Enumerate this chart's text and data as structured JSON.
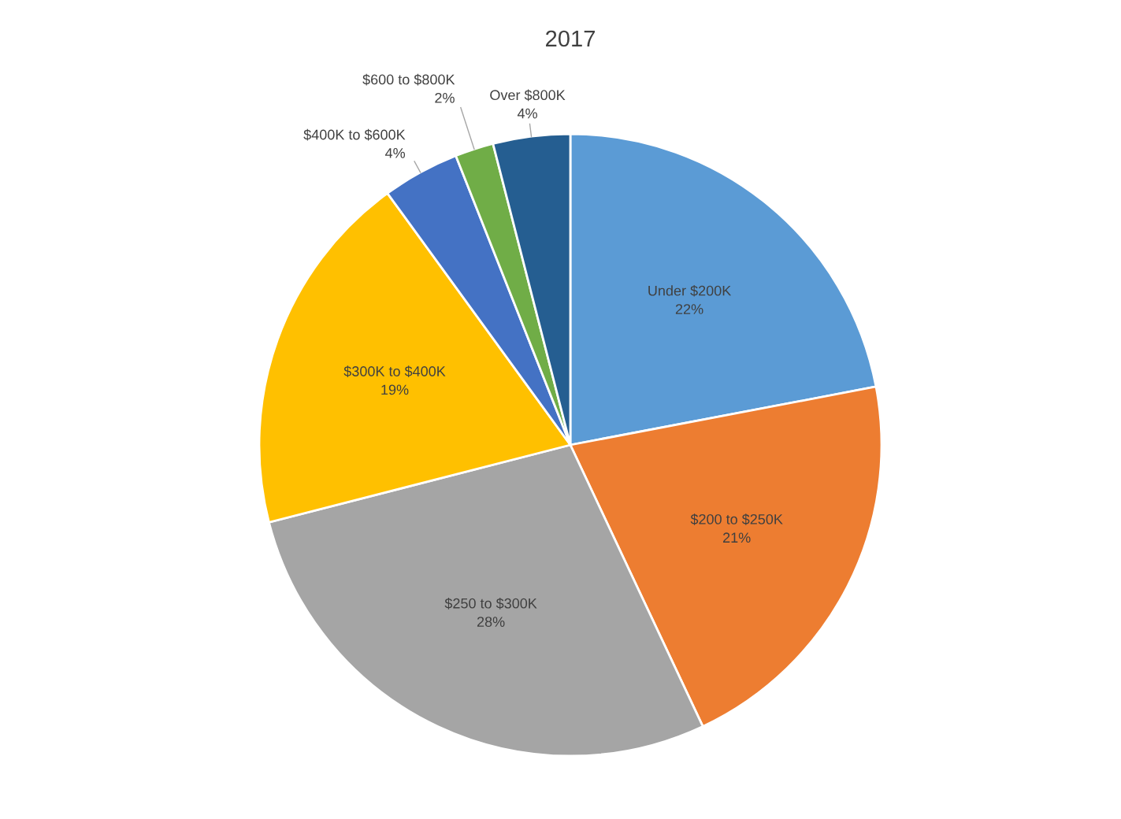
{
  "chart_data": {
    "type": "pie",
    "title": "2017",
    "categories": [
      "Under $200K",
      "$200 to $250K",
      "$250 to $300K",
      "$300K to $400K",
      "$400K to $600K",
      "$600 to $800K",
      "Over $800K"
    ],
    "values": [
      22,
      21,
      28,
      19,
      4,
      2,
      4
    ],
    "value_labels": [
      "22%",
      "21%",
      "28%",
      "19%",
      "4%",
      "2%",
      "4%"
    ],
    "colors": [
      "#5b9bd5",
      "#ed7d31",
      "#a5a5a5",
      "#ffc000",
      "#4472c4",
      "#70ad47",
      "#255e91"
    ],
    "legend": false
  }
}
